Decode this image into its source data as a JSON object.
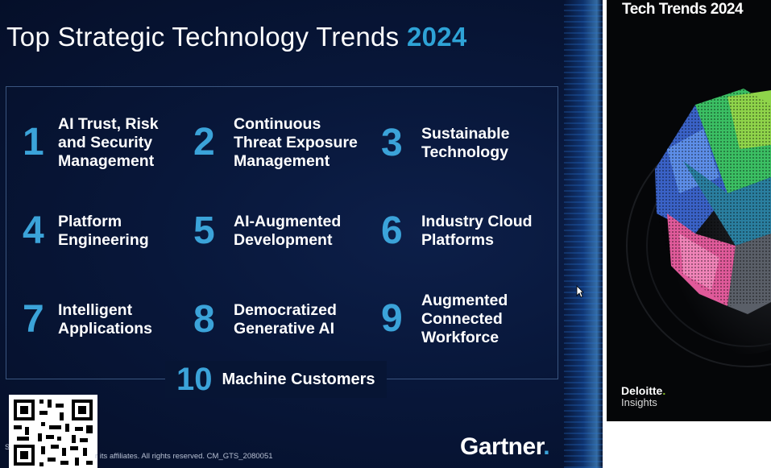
{
  "slide": {
    "title_text": "Top Strategic Technology Trends ",
    "title_year": "2024",
    "trends": [
      {
        "num": "1",
        "label": "AI Trust, Risk\nand Security\nManagement"
      },
      {
        "num": "2",
        "label": "Continuous\nThreat Exposure\nManagement"
      },
      {
        "num": "3",
        "label": "Sustainable\nTechnology"
      },
      {
        "num": "4",
        "label": "Platform\nEngineering"
      },
      {
        "num": "5",
        "label": "AI-Augmented\nDevelopment"
      },
      {
        "num": "6",
        "label": "Industry Cloud\nPlatforms"
      },
      {
        "num": "7",
        "label": "Intelligent\nApplications"
      },
      {
        "num": "8",
        "label": "Democratized\nGenerative AI"
      },
      {
        "num": "9",
        "label": "Augmented\nConnected\nWorkforce"
      },
      {
        "num": "10",
        "label": "Machine Customers"
      }
    ],
    "copyright": "r its affiliates. All rights reserved. CM_GTS_2080051",
    "small_letter": "S",
    "logo": "Gartner",
    "logo_dot": "."
  },
  "cover": {
    "title": "Tech Trends 2024",
    "brand": "Deloitte",
    "brand_dot": ".",
    "sub": "Insights"
  },
  "colors": {
    "accent_blue": "#3ba3d9",
    "slide_bg": "#08173a",
    "deloitte_green": "#86bc25"
  },
  "icons": [
    "qr-code-icon",
    "mouse-cursor-icon"
  ]
}
